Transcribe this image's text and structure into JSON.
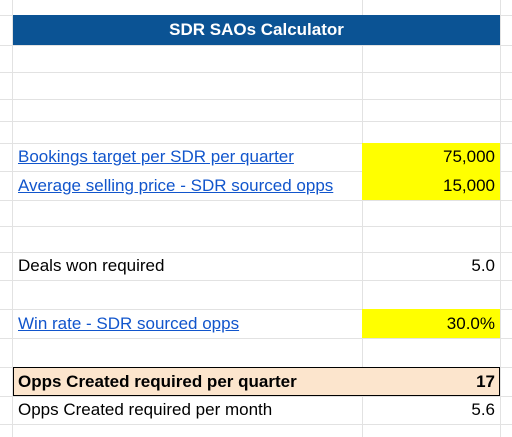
{
  "header": {
    "title": "SDR SAOs Calculator"
  },
  "table": {
    "rows": [
      [
        "Bookings target per SDR per quarter",
        "75,000"
      ],
      [
        "Average selling price - SDR sourced opps",
        "15,000"
      ],
      [
        "Deals won required",
        "5.0"
      ],
      [
        "Win rate - SDR sourced opps",
        "30.0%"
      ],
      [
        "Opps Created required per quarter",
        "17"
      ],
      [
        "Opps Created required per month",
        "5.6"
      ]
    ]
  }
}
